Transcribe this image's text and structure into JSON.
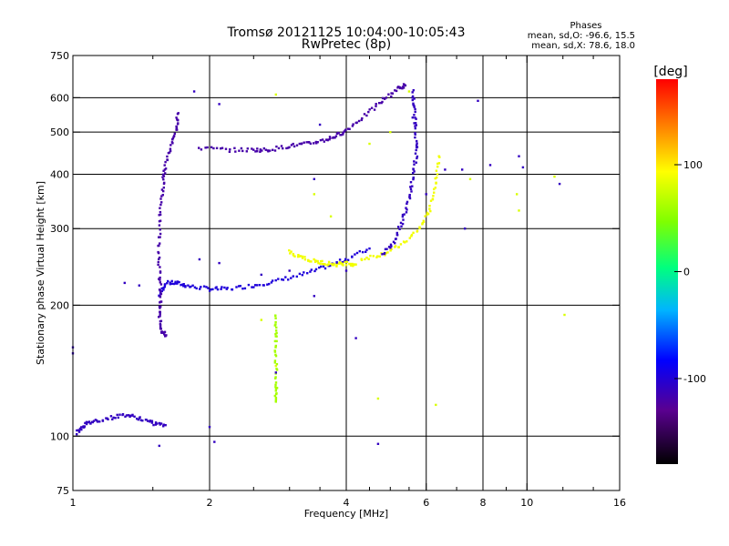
{
  "chart_data": {
    "type": "scatter",
    "title": "Tromsø 20121125 10:04:00-10:05:43",
    "subtitle": "RwPretec (8p)",
    "xlabel": "Frequency [MHz]",
    "ylabel": "Stationary phase Virtual Height [km]",
    "x_scale": "log",
    "y_scale": "log",
    "xlim": [
      1,
      16
    ],
    "ylim": [
      75,
      750
    ],
    "x_ticks": [
      1,
      2,
      4,
      6,
      8,
      10,
      16
    ],
    "x_minor_ticks": [
      1.5,
      2.5,
      3,
      3.5,
      4.5,
      5,
      5.5,
      7,
      9,
      12,
      14
    ],
    "y_ticks": [
      75,
      100,
      200,
      300,
      400,
      500,
      600,
      750
    ],
    "vertical_gridlines": [
      2,
      4,
      6,
      8,
      10
    ],
    "horizontal_gridlines": [
      100,
      200,
      300,
      400,
      500,
      600
    ],
    "stats_panel": {
      "title": "Phases",
      "line1": "mean, sd,O: -96.6, 15.5",
      "line2": "mean, sd,X: 78.6, 18.0"
    },
    "colorbar": {
      "label": "[deg]",
      "range": [
        -180,
        180
      ],
      "ticks": [
        {
          "value": 100,
          "label": "100"
        },
        {
          "value": 0,
          "label": "0"
        },
        {
          "value": -100,
          "label": "-100"
        }
      ]
    },
    "traces": [
      {
        "name": "",
        "phase": -100,
        "points": [
          [
            1.55,
            210
          ],
          [
            1.6,
            225
          ],
          [
            1.7,
            225
          ],
          [
            1.8,
            221
          ],
          [
            2.0,
            218
          ],
          [
            2.2,
            218
          ],
          [
            2.5,
            222
          ],
          [
            2.8,
            227
          ],
          [
            3.2,
            235
          ],
          [
            3.6,
            245
          ],
          [
            4.0,
            255
          ],
          [
            4.5,
            270
          ]
        ]
      },
      {
        "name": "",
        "phase": 90,
        "points": [
          [
            4.3,
            255
          ],
          [
            4.8,
            262
          ],
          [
            5.3,
            275
          ],
          [
            5.8,
            300
          ],
          [
            6.1,
            330
          ],
          [
            6.3,
            380
          ],
          [
            6.4,
            440
          ]
        ]
      },
      {
        "name": "",
        "phase": -120,
        "points": [
          [
            1.7,
            550
          ],
          [
            1.7,
            510
          ],
          [
            1.65,
            470
          ],
          [
            1.6,
            420
          ],
          [
            1.58,
            380
          ],
          [
            1.56,
            330
          ],
          [
            1.55,
            280
          ],
          [
            1.55,
            240
          ],
          [
            1.56,
            210
          ],
          [
            1.55,
            190
          ],
          [
            1.57,
            175
          ],
          [
            1.6,
            170
          ]
        ]
      },
      {
        "name": "",
        "phase": -120,
        "points": [
          [
            1.9,
            460
          ],
          [
            2.2,
            455
          ],
          [
            2.5,
            455
          ],
          [
            2.7,
            455
          ],
          [
            3.0,
            465
          ],
          [
            3.3,
            470
          ],
          [
            3.6,
            480
          ],
          [
            3.8,
            490
          ],
          [
            4.0,
            505
          ],
          [
            4.4,
            545
          ],
          [
            4.8,
            590
          ],
          [
            5.2,
            630
          ],
          [
            5.4,
            640
          ]
        ]
      },
      {
        "name": "",
        "phase": -110,
        "points": [
          [
            5.6,
            620
          ],
          [
            5.65,
            560
          ],
          [
            5.7,
            500
          ],
          [
            5.7,
            440
          ],
          [
            5.6,
            390
          ],
          [
            5.5,
            350
          ],
          [
            5.3,
            310
          ],
          [
            5.1,
            280
          ],
          [
            4.8,
            262
          ]
        ]
      },
      {
        "name": "",
        "phase": -110,
        "points": [
          [
            1.02,
            102
          ],
          [
            1.06,
            106
          ],
          [
            1.1,
            108
          ],
          [
            1.2,
            110
          ],
          [
            1.3,
            112
          ],
          [
            1.4,
            110
          ],
          [
            1.5,
            107
          ],
          [
            1.6,
            106
          ]
        ]
      },
      {
        "name": "",
        "phase": 90,
        "points": [
          [
            3.0,
            265
          ],
          [
            3.2,
            258
          ],
          [
            3.4,
            252
          ],
          [
            3.6,
            250
          ],
          [
            3.8,
            248
          ],
          [
            4.0,
            250
          ],
          [
            4.2,
            248
          ]
        ]
      },
      {
        "name": "",
        "phase": 60,
        "points": [
          [
            2.8,
            190
          ],
          [
            2.8,
            170
          ],
          [
            2.8,
            150
          ],
          [
            2.8,
            130
          ],
          [
            2.8,
            120
          ]
        ]
      },
      {
        "name": "",
        "phase": -110,
        "points": [
          [
            1.3,
            225
          ],
          [
            1.4,
            222
          ],
          [
            1.9,
            255
          ],
          [
            2.1,
            250
          ],
          [
            2.6,
            235
          ],
          [
            3.4,
            210
          ],
          [
            1.0,
            155
          ],
          [
            1.0,
            160
          ],
          [
            1.55,
            95
          ],
          [
            2.0,
            105
          ],
          [
            2.05,
            97
          ],
          [
            3.4,
            390
          ],
          [
            4.0,
            240
          ],
          [
            4.2,
            168
          ],
          [
            4.7,
            96
          ],
          [
            7.8,
            590
          ],
          [
            8.3,
            420
          ],
          [
            9.6,
            440
          ],
          [
            9.8,
            415
          ],
          [
            11.8,
            380
          ],
          [
            1.85,
            620
          ],
          [
            2.1,
            580
          ],
          [
            3.5,
            520
          ],
          [
            5.6,
            540
          ],
          [
            6.0,
            360
          ],
          [
            6.6,
            410
          ],
          [
            7.2,
            410
          ],
          [
            7.3,
            300
          ],
          [
            2.8,
            140
          ],
          [
            3.0,
            240
          ]
        ]
      },
      {
        "name": "",
        "phase": 80,
        "points": [
          [
            2.8,
            610
          ],
          [
            4.5,
            470
          ],
          [
            5.0,
            500
          ],
          [
            5.5,
            620
          ],
          [
            7.5,
            390
          ],
          [
            9.5,
            360
          ],
          [
            9.6,
            330
          ],
          [
            11.5,
            395
          ],
          [
            12.1,
            190
          ],
          [
            2.6,
            185
          ],
          [
            2.8,
            145
          ],
          [
            4.7,
            122
          ],
          [
            6.3,
            118
          ],
          [
            3.7,
            320
          ],
          [
            3.4,
            360
          ]
        ]
      }
    ]
  }
}
